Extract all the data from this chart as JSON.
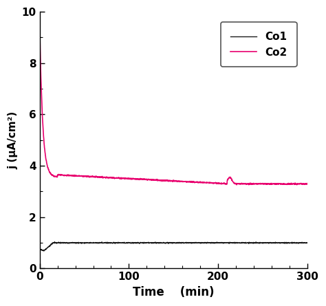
{
  "title": "",
  "xlabel": "Time    (min)",
  "ylabel": "j (μA/cm²)",
  "xlim": [
    0,
    300
  ],
  "ylim": [
    0,
    10
  ],
  "xticks": [
    0,
    100,
    200,
    300
  ],
  "yticks": [
    0,
    2,
    4,
    6,
    8,
    10
  ],
  "legend_labels": [
    "Co1",
    "Co2"
  ],
  "co1_color": "#1a1a1a",
  "co2_color": "#e8006e",
  "background_color": "#ffffff",
  "figsize": [
    4.74,
    4.45
  ],
  "dpi": 100
}
